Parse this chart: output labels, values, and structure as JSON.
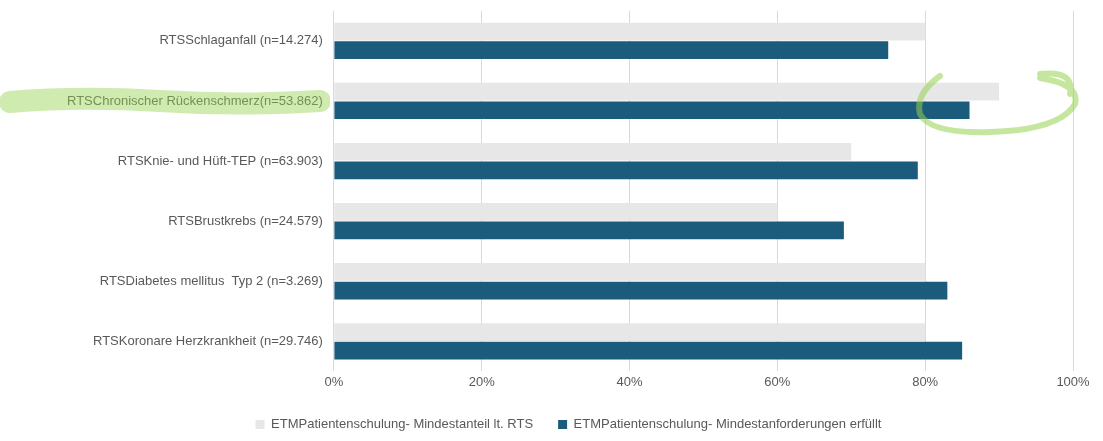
{
  "chart_data": {
    "type": "bar",
    "orientation": "horizontal",
    "categories": [
      "RTSSchlaganfall (n=14.274)",
      "RTSChronischer Rückenschmerz(n=53.862)",
      "RTSKnie- und Hüft-TEP (n=63.903)",
      "RTSBrustkrebs (n=24.579)",
      "RTSDiabetes mellitus  Typ 2 (n=3.269)",
      "RTSKoronare Herzkrankheit (n=29.746)"
    ],
    "series": [
      {
        "name": "ETMPatientenschulung- Mindestanteil lt. RTS",
        "color": "#e7e7e7",
        "values": [
          80,
          90,
          70,
          60,
          80,
          80
        ]
      },
      {
        "name": "ETMPatientenschulung- Mindestanforderungen erfüllt",
        "color": "#1b5b7b",
        "values": [
          75,
          86,
          79,
          69,
          83,
          85
        ]
      }
    ],
    "xlim": [
      0,
      100
    ],
    "xticks": [
      {
        "value": 0,
        "label": "0%"
      },
      {
        "value": 20,
        "label": "20%"
      },
      {
        "value": 40,
        "label": "40%"
      },
      {
        "value": 60,
        "label": "60%"
      },
      {
        "value": 80,
        "label": "80%"
      },
      {
        "value": 100,
        "label": "100%"
      }
    ],
    "grid": "x",
    "legend": "bottom"
  }
}
